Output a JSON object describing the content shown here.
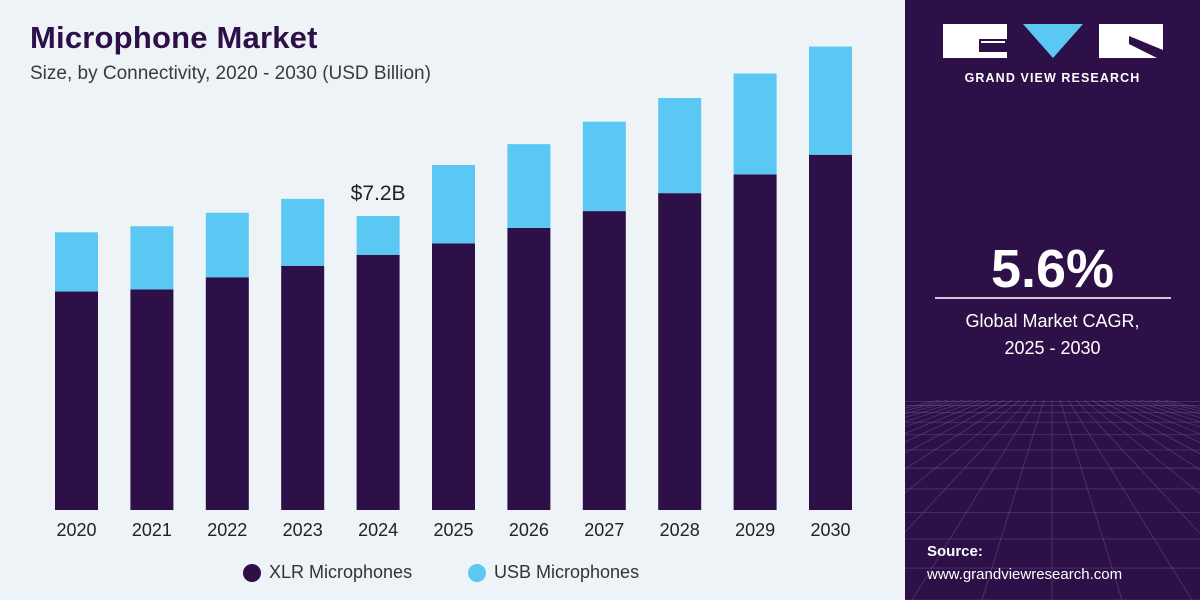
{
  "header": {
    "title": "Microphone Market",
    "subtitle": "Size, by Connectivity, 2020 - 2030 (USD Billion)"
  },
  "chart_data": {
    "type": "bar",
    "stacked": true,
    "categories": [
      "2020",
      "2021",
      "2022",
      "2023",
      "2024",
      "2025",
      "2026",
      "2027",
      "2028",
      "2029",
      "2030"
    ],
    "series": [
      {
        "name": "XLR Microphones",
        "color": "#2e1048",
        "values": [
          5.35,
          5.4,
          5.7,
          5.98,
          6.25,
          6.53,
          6.91,
          7.32,
          7.76,
          8.22,
          8.7
        ]
      },
      {
        "name": "USB Microphones",
        "color": "#5bc8f4",
        "values": [
          1.45,
          1.55,
          1.58,
          1.64,
          0.95,
          1.92,
          2.05,
          2.19,
          2.33,
          2.47,
          2.65
        ]
      }
    ],
    "annotations": [
      {
        "category": "2024",
        "label": "$7.2B"
      }
    ],
    "ylim": [
      0,
      12
    ],
    "xlabel": "",
    "ylabel": "",
    "grid": false,
    "legend_position": "bottom"
  },
  "sidebar": {
    "brand": "GRAND VIEW RESEARCH",
    "cagr_value": "5.6%",
    "cagr_label_line1": "Global Market CAGR,",
    "cagr_label_line2": "2025 - 2030",
    "source_label": "Source:",
    "source_url": "www.grandviewresearch.com"
  }
}
